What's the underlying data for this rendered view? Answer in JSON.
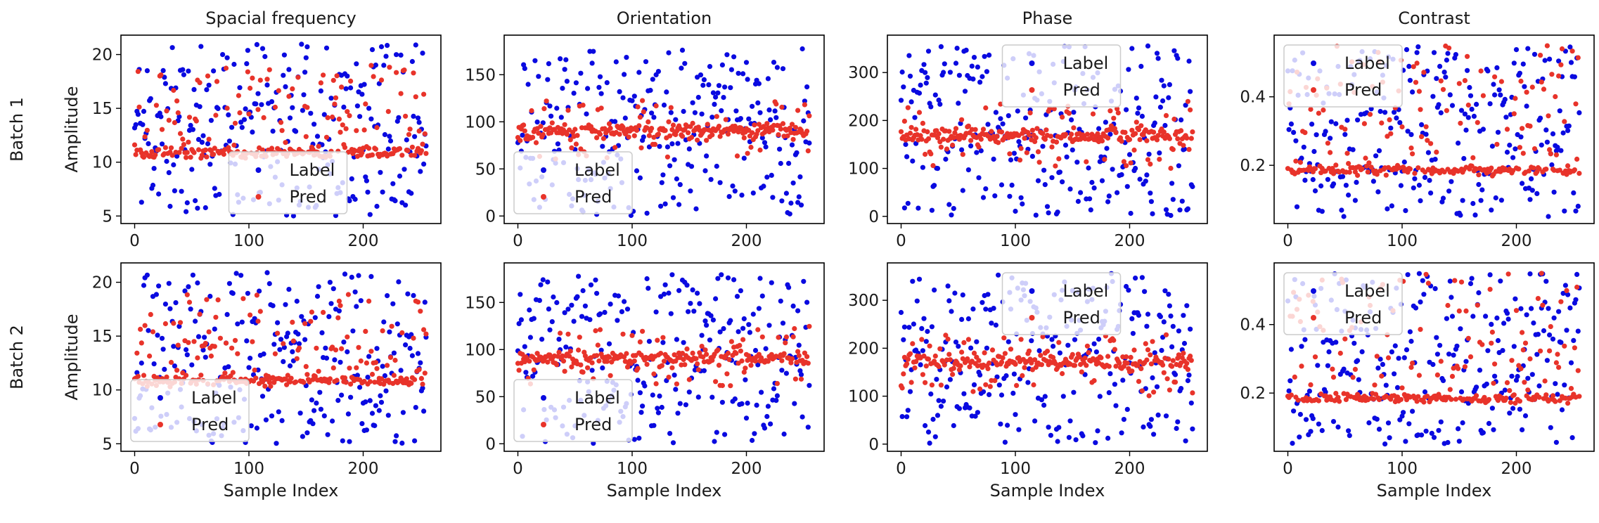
{
  "figure": {
    "row_labels": [
      "Batch 1",
      "Batch 2"
    ],
    "colors": {
      "label": "#0a0ae0",
      "pred": "#e8332a",
      "axes": "#000000"
    }
  },
  "chart_data": [
    {
      "type": "scatter",
      "row": 0,
      "col": 0,
      "title": "Spacial frequency",
      "xlabel": "",
      "ylabel": "Amplitude",
      "xlim": [
        -12,
        268
      ],
      "ylim": [
        4.3,
        21.8
      ],
      "xticks": [
        0,
        100,
        200
      ],
      "yticks": [
        5,
        10,
        15,
        20
      ],
      "legend": {
        "entries": [
          "Label",
          "Pred"
        ],
        "position": "lower-center"
      },
      "series": [
        {
          "name": "Label",
          "dist": "uniform",
          "lo": 5,
          "hi": 21,
          "seed": 11
        },
        {
          "name": "Pred",
          "dist": "band",
          "base": 10.9,
          "spread": 0.25,
          "lo": 11,
          "hi": 19,
          "outlier_frac": 0.38,
          "seed": 12
        }
      ]
    },
    {
      "type": "scatter",
      "row": 0,
      "col": 1,
      "title": "Orientation",
      "xlabel": "",
      "ylabel": "",
      "xlim": [
        -12,
        268
      ],
      "ylim": [
        -8,
        192
      ],
      "xticks": [
        0,
        100,
        200
      ],
      "yticks": [
        0,
        50,
        100,
        150
      ],
      "legend": {
        "entries": [
          "Label",
          "Pred"
        ],
        "position": "lower-left"
      },
      "series": [
        {
          "name": "Label",
          "dist": "uniform",
          "lo": 0,
          "hi": 180,
          "seed": 21
        },
        {
          "name": "Pred",
          "dist": "band",
          "base": 90,
          "spread": 4,
          "lo": 60,
          "hi": 125,
          "outlier_frac": 0.25,
          "seed": 22
        }
      ]
    },
    {
      "type": "scatter",
      "row": 0,
      "col": 2,
      "title": "Phase",
      "xlabel": "",
      "ylabel": "",
      "xlim": [
        -12,
        268
      ],
      "ylim": [
        -15,
        378
      ],
      "xticks": [
        0,
        100,
        200
      ],
      "yticks": [
        0,
        100,
        200,
        300
      ],
      "legend": {
        "entries": [
          "Label",
          "Pred"
        ],
        "position": "upper-center"
      },
      "series": [
        {
          "name": "Label",
          "dist": "uniform",
          "lo": 0,
          "hi": 360,
          "seed": 31
        },
        {
          "name": "Pred",
          "dist": "band",
          "base": 170,
          "spread": 8,
          "lo": 100,
          "hi": 240,
          "outlier_frac": 0.28,
          "seed": 32
        }
      ]
    },
    {
      "type": "scatter",
      "row": 0,
      "col": 3,
      "title": "Contrast",
      "xlabel": "",
      "ylabel": "",
      "xlim": [
        -12,
        268
      ],
      "ylim": [
        0.03,
        0.58
      ],
      "xticks": [
        0,
        100,
        200
      ],
      "yticks": [
        0.2,
        0.4
      ],
      "legend": {
        "entries": [
          "Label",
          "Pred"
        ],
        "position": "upper-left"
      },
      "series": [
        {
          "name": "Label",
          "dist": "uniform",
          "lo": 0.05,
          "hi": 0.55,
          "seed": 41
        },
        {
          "name": "Pred",
          "dist": "band",
          "base": 0.185,
          "spread": 0.006,
          "lo": 0.19,
          "hi": 0.55,
          "outlier_frac": 0.42,
          "seed": 42
        }
      ]
    },
    {
      "type": "scatter",
      "row": 1,
      "col": 0,
      "title": "",
      "xlabel": "Sample Index",
      "ylabel": "Amplitude",
      "xlim": [
        -12,
        268
      ],
      "ylim": [
        4.3,
        21.8
      ],
      "xticks": [
        0,
        100,
        200
      ],
      "yticks": [
        5,
        10,
        15,
        20
      ],
      "legend": {
        "entries": [
          "Label",
          "Pred"
        ],
        "position": "lower-left"
      },
      "series": [
        {
          "name": "Label",
          "dist": "uniform",
          "lo": 5,
          "hi": 21,
          "seed": 51
        },
        {
          "name": "Pred",
          "dist": "band",
          "base": 10.9,
          "spread": 0.25,
          "lo": 11,
          "hi": 19,
          "outlier_frac": 0.38,
          "seed": 52
        }
      ]
    },
    {
      "type": "scatter",
      "row": 1,
      "col": 1,
      "title": "",
      "xlabel": "Sample Index",
      "ylabel": "",
      "xlim": [
        -12,
        268
      ],
      "ylim": [
        -8,
        192
      ],
      "xticks": [
        0,
        100,
        200
      ],
      "yticks": [
        0,
        50,
        100,
        150
      ],
      "legend": {
        "entries": [
          "Label",
          "Pred"
        ],
        "position": "lower-left"
      },
      "series": [
        {
          "name": "Label",
          "dist": "uniform",
          "lo": 0,
          "hi": 180,
          "seed": 61
        },
        {
          "name": "Pred",
          "dist": "band",
          "base": 91,
          "spread": 4,
          "lo": 60,
          "hi": 125,
          "outlier_frac": 0.25,
          "seed": 62
        }
      ]
    },
    {
      "type": "scatter",
      "row": 1,
      "col": 2,
      "title": "",
      "xlabel": "Sample Index",
      "ylabel": "",
      "xlim": [
        -12,
        268
      ],
      "ylim": [
        -15,
        378
      ],
      "xticks": [
        0,
        100,
        200
      ],
      "yticks": [
        0,
        100,
        200,
        300
      ],
      "legend": {
        "entries": [
          "Label",
          "Pred"
        ],
        "position": "upper-center"
      },
      "series": [
        {
          "name": "Label",
          "dist": "uniform",
          "lo": 0,
          "hi": 360,
          "seed": 71
        },
        {
          "name": "Pred",
          "dist": "band",
          "base": 172,
          "spread": 8,
          "lo": 100,
          "hi": 240,
          "outlier_frac": 0.3,
          "seed": 72
        }
      ]
    },
    {
      "type": "scatter",
      "row": 1,
      "col": 3,
      "title": "",
      "xlabel": "Sample Index",
      "ylabel": "",
      "xlim": [
        -12,
        268
      ],
      "ylim": [
        0.03,
        0.58
      ],
      "xticks": [
        0,
        100,
        200
      ],
      "yticks": [
        0.2,
        0.4
      ],
      "legend": {
        "entries": [
          "Label",
          "Pred"
        ],
        "position": "upper-left"
      },
      "series": [
        {
          "name": "Label",
          "dist": "uniform",
          "lo": 0.05,
          "hi": 0.55,
          "seed": 81
        },
        {
          "name": "Pred",
          "dist": "band",
          "base": 0.185,
          "spread": 0.006,
          "lo": 0.19,
          "hi": 0.55,
          "outlier_frac": 0.42,
          "seed": 82
        }
      ]
    }
  ]
}
